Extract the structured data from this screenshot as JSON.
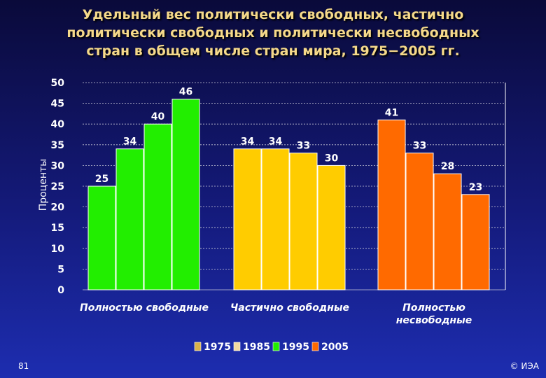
{
  "title": "Удельный вес политически свободных, частично\nполитически свободных и политически несвободных\nстран в общем числе стран мира, 1975−2005 гг.",
  "slide_number": "81",
  "copyright": "© ИЭА",
  "chart_data": {
    "type": "bar",
    "title": "Удельный вес политически свободных, частично политически свободных и политически несвободных стран в общем числе стран мира, 1975−2005 гг.",
    "ylabel": "Проценты",
    "xlabel": "",
    "ylim": [
      0,
      50
    ],
    "yticks": [
      0,
      5,
      10,
      15,
      20,
      25,
      30,
      35,
      40,
      45,
      50
    ],
    "grid": true,
    "legend_position": "bottom",
    "categories": [
      "Полностью свободные",
      "Частично свободные",
      "Полностью\nнесвободные"
    ],
    "category_colors": [
      "#22ee00",
      "#ffcc00",
      "#ff6a00"
    ],
    "series": [
      {
        "name": "1975",
        "values": [
          25,
          34,
          41
        ]
      },
      {
        "name": "1985",
        "values": [
          34,
          34,
          33
        ]
      },
      {
        "name": "1995",
        "values": [
          40,
          33,
          28
        ]
      },
      {
        "name": "2005",
        "values": [
          46,
          30,
          23
        ]
      }
    ],
    "legend_colors": [
      "#d9b24a",
      "#f3d9a0",
      "#22ee00",
      "#ff6a00"
    ]
  }
}
